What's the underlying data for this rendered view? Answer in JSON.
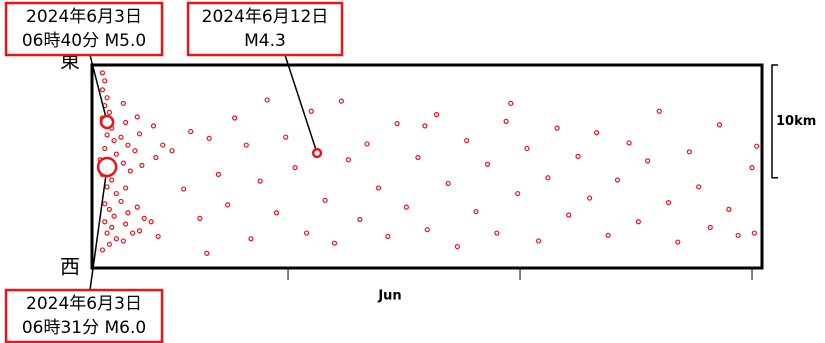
{
  "chart_data": {
    "type": "scatter",
    "x_label": "Jun",
    "east_label": "東",
    "west_label": "西",
    "xlim": [
      2.55,
      31.43
    ],
    "ylim": [
      0,
      18
    ],
    "xticks": [
      11,
      21,
      31
    ],
    "scale_bar": {
      "label": "10km",
      "length": 10
    },
    "color": "#e8141c",
    "x": [
      3.0,
      3.1,
      3.0,
      3.2,
      3.1,
      3.3,
      3.0,
      3.4,
      3.2,
      3.5,
      3.1,
      3.6,
      3.3,
      3.0,
      3.4,
      3.2,
      3.6,
      3.1,
      3.3,
      3.5,
      3.1,
      3.4,
      3.2,
      3.6,
      3.3,
      3.9,
      4.0,
      3.8,
      4.1,
      3.9,
      4.2,
      4.0,
      3.8,
      4.1,
      4.0,
      4.3,
      3.9,
      4.5,
      4.6,
      4.4,
      4.7,
      4.5,
      4.8,
      4.6,
      5.2,
      5.3,
      5.1,
      5.4,
      5.6,
      2.9,
      3.0,
      6.0,
      6.5,
      6.8,
      7.2,
      7.5,
      7.6,
      8.0,
      8.4,
      8.7,
      9.2,
      9.4,
      9.8,
      10.1,
      10.5,
      10.9,
      11.3,
      11.8,
      12.0,
      12.6,
      13.0,
      13.3,
      13.6,
      14.1,
      14.4,
      14.9,
      15.3,
      15.7,
      16.1,
      16.6,
      17.0,
      17.4,
      17.9,
      18.3,
      18.7,
      19.1,
      19.6,
      20.0,
      20.4,
      20.9,
      21.3,
      21.8,
      22.2,
      22.6,
      23.1,
      23.5,
      24.0,
      24.3,
      24.8,
      25.2,
      25.7,
      26.1,
      26.5,
      27.0,
      27.4,
      27.8,
      28.3,
      28.7,
      29.2,
      29.6,
      30.0,
      30.4,
      31.0,
      31.1,
      31.2,
      16.9,
      20.6
    ],
    "y": [
      17.3,
      16.6,
      15.8,
      15.1,
      14.4,
      13.8,
      13.3,
      12.4,
      11.8,
      11.3,
      10.6,
      10.1,
      9.6,
      8.3,
      7.8,
      7.2,
      6.6,
      5.7,
      5.2,
      4.6,
      4.1,
      3.6,
      3.1,
      2.6,
      2.1,
      14.6,
      12.9,
      11.6,
      10.9,
      9.3,
      8.6,
      7.1,
      5.9,
      4.9,
      3.9,
      3.1,
      2.4,
      13.4,
      11.9,
      10.4,
      9.1,
      5.4,
      4.4,
      3.3,
      12.6,
      9.8,
      4.1,
      2.8,
      10.9,
      9.6,
      1.6,
      10.4,
      7.0,
      12.1,
      4.4,
      1.3,
      11.5,
      8.3,
      5.6,
      13.3,
      10.9,
      2.6,
      7.7,
      14.9,
      4.9,
      11.6,
      8.9,
      3.1,
      13.9,
      6.0,
      2.2,
      14.8,
      9.6,
      4.3,
      11.0,
      7.1,
      2.8,
      12.8,
      5.4,
      9.8,
      3.4,
      13.6,
      7.5,
      1.9,
      11.3,
      5.0,
      9.2,
      3.1,
      13.0,
      6.6,
      10.6,
      2.4,
      8.0,
      12.4,
      4.7,
      9.9,
      6.2,
      12.0,
      2.9,
      7.8,
      11.1,
      4.1,
      9.5,
      13.9,
      5.8,
      2.3,
      10.3,
      7.2,
      3.6,
      12.7,
      5.2,
      2.9,
      8.9,
      3.1,
      10.8,
      12.6,
      14.6
    ],
    "events": [
      {
        "x": 3.2,
        "y": 12.95,
        "magnitude": 5.0,
        "lines": [
          "2024年6月3日",
          "06時40分 M5.0"
        ]
      },
      {
        "x": 12.25,
        "y": 10.2,
        "magnitude": 4.3,
        "lines": [
          "2024年6月12日",
          "M4.3"
        ]
      },
      {
        "x": 3.2,
        "y": 8.96,
        "magnitude": 6.0,
        "lines": [
          "2024年6月3日",
          "06時31分 M6.0"
        ]
      }
    ]
  }
}
